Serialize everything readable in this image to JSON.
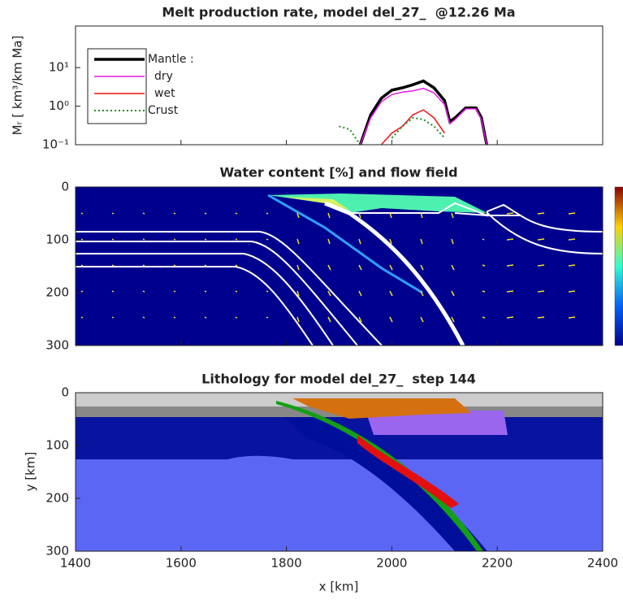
{
  "chart_data": [
    {
      "type": "line",
      "title": "Melt production rate, model del_27_  @12.26 Ma",
      "ylabel": "Mᵣ [ km³/km Ma]",
      "log_y": true,
      "xlim": [
        1400,
        2400
      ],
      "xticks": [
        1400,
        1600,
        1800,
        2000,
        2200,
        2400
      ],
      "ylim": [
        0.1,
        120
      ],
      "yticks": [
        {
          "value": 0.1,
          "label": "10⁻¹"
        },
        {
          "value": 1,
          "label": "10⁰"
        },
        {
          "value": 10,
          "label": "10¹"
        }
      ],
      "x": [
        1900,
        1920,
        1940,
        1960,
        1980,
        2000,
        2020,
        2040,
        2060,
        2080,
        2100,
        2110,
        2120,
        2140,
        2160,
        2170,
        2180
      ],
      "series": [
        {
          "name": "Mantle :",
          "color": "#000000",
          "linestyle": "solid",
          "width": 3.5,
          "values": [
            null,
            null,
            0.1,
            0.6,
            1.6,
            2.6,
            3.0,
            3.6,
            4.5,
            3.0,
            1.4,
            0.4,
            0.5,
            0.9,
            0.9,
            0.5,
            0.1
          ]
        },
        {
          "name": "dry",
          "color": "#e619e6",
          "linestyle": "solid",
          "width": 1.5,
          "values": [
            null,
            null,
            0.1,
            0.5,
            1.3,
            2.0,
            2.3,
            2.5,
            2.9,
            2.2,
            1.1,
            0.35,
            0.45,
            0.85,
            0.85,
            0.45,
            0.1
          ]
        },
        {
          "name": "wet",
          "color": "#ee1111",
          "linestyle": "solid",
          "width": 1.5,
          "values": [
            null,
            null,
            null,
            null,
            0.1,
            0.2,
            0.3,
            0.6,
            0.8,
            0.5,
            0.2,
            null,
            null,
            null,
            null,
            null,
            null
          ]
        },
        {
          "name": "Crust",
          "color": "#1e8c1e",
          "linestyle": "dotted",
          "width": 2,
          "values": [
            0.3,
            0.25,
            0.1,
            null,
            null,
            0.15,
            0.3,
            0.5,
            0.45,
            0.3,
            0.15,
            null,
            null,
            null,
            null,
            null,
            null
          ]
        }
      ],
      "legend": "upper left"
    },
    {
      "type": "image",
      "title": "Water content [%] and flow field",
      "xlim": [
        1400,
        2400
      ],
      "xticks": [
        1400,
        1600,
        1800,
        2000,
        2200,
        2400
      ],
      "ylim": [
        0,
        300
      ],
      "yticks": [
        0,
        100,
        200,
        300
      ]
    },
    {
      "type": "image",
      "title": "Lithology for model del_27_  step 144",
      "xlabel": "x [km]",
      "ylabel": "y [km]",
      "xlim": [
        1400,
        2400
      ],
      "xticks": [
        1400,
        1600,
        1800,
        2000,
        2200,
        2400
      ],
      "ylim": [
        0,
        300
      ],
      "yticks": [
        0,
        100,
        200,
        300
      ]
    }
  ]
}
